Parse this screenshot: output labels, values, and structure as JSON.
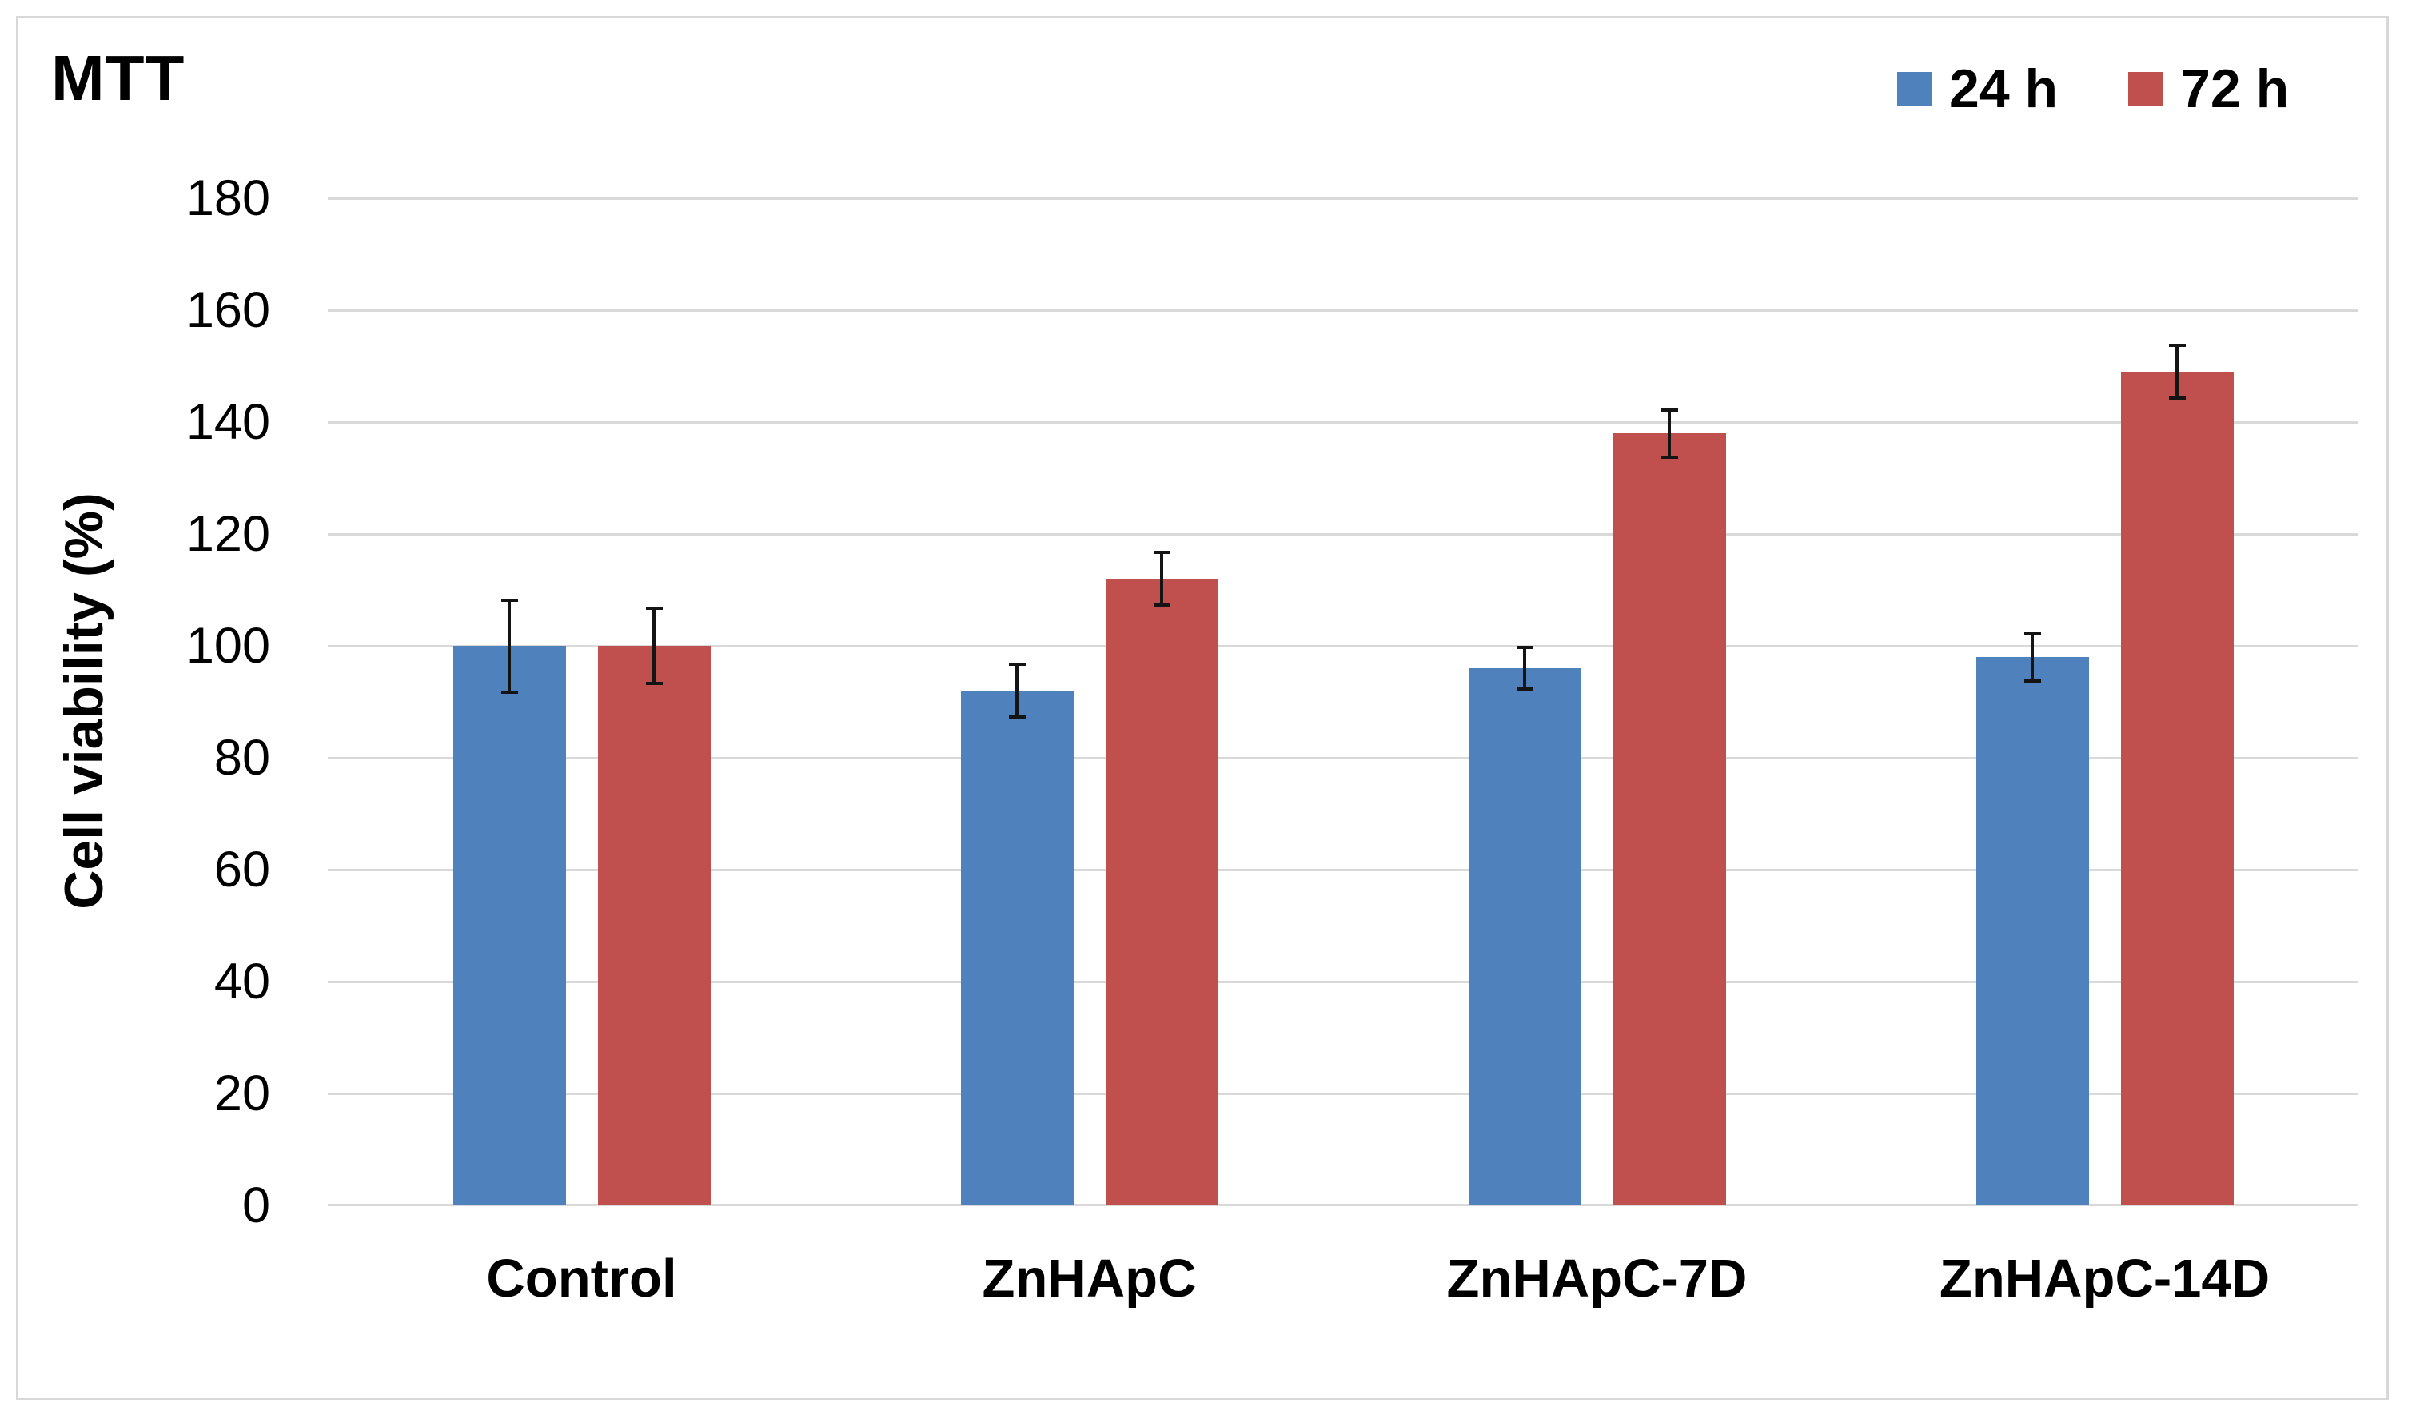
{
  "title": "MTT",
  "chart_data": {
    "type": "bar",
    "title": "MTT",
    "categories": [
      "Control",
      "ZnHApC",
      "ZnHApC-7D",
      "ZnHApC-14D"
    ],
    "series": [
      {
        "name": "24 h",
        "color": "#4F81BD",
        "values": [
          100,
          92,
          96,
          98
        ],
        "errors": [
          8.5,
          5,
          4,
          4.5
        ]
      },
      {
        "name": "72 h",
        "color": "#C0504D",
        "values": [
          100,
          112,
          138,
          149
        ],
        "errors": [
          7,
          5,
          4.5,
          5
        ]
      }
    ],
    "xlabel": "",
    "ylabel": "Cell viability (%)",
    "ylim": [
      0,
      180
    ],
    "ytick_step": 20,
    "yticks": [
      0,
      20,
      40,
      60,
      80,
      100,
      120,
      140,
      160,
      180
    ],
    "grid": true,
    "legend_position": "top-right",
    "error_bar_color": "#141414",
    "gridline_color": "#d9d9d9"
  }
}
